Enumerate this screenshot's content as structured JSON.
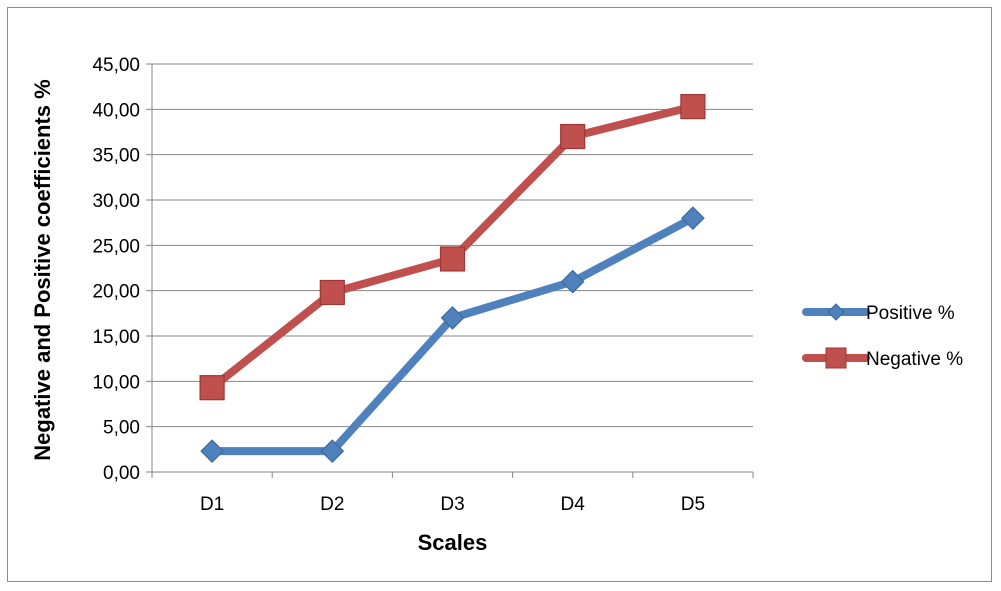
{
  "chart_data": {
    "type": "line",
    "categories": [
      "D1",
      "D2",
      "D3",
      "D4",
      "D5"
    ],
    "series": [
      {
        "name": "Positive %",
        "values": [
          2.3,
          2.3,
          17.0,
          21.0,
          28.0
        ],
        "color": "#4f81bd",
        "marker": "diamond"
      },
      {
        "name": "Negative %",
        "values": [
          9.3,
          19.8,
          23.5,
          37.0,
          40.3
        ],
        "color": "#c0504d",
        "marker": "square"
      }
    ],
    "xlabel": "Scales",
    "ylabel": "Negative and Positive coefficients %",
    "ylim": [
      0,
      45
    ],
    "yticks": [
      "0,00",
      "5,00",
      "10,00",
      "15,00",
      "20,00",
      "25,00",
      "30,00",
      "35,00",
      "40,00",
      "45,00"
    ],
    "grid": true,
    "legend_position": "right"
  }
}
